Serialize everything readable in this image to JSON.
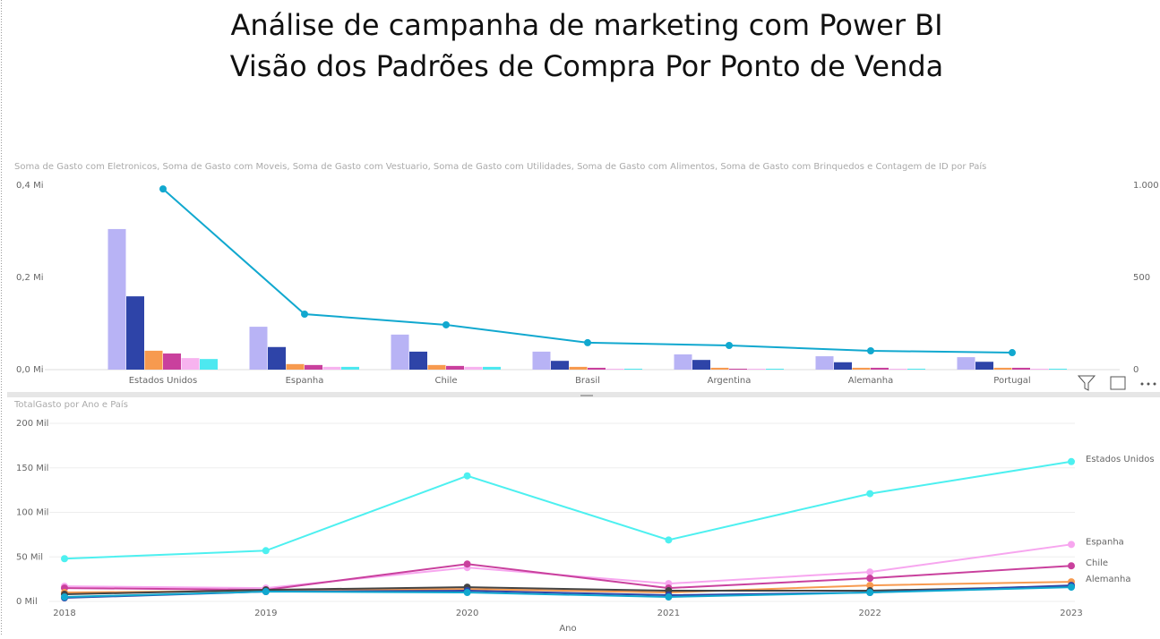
{
  "header": {
    "title_lines": [
      "Análise de campanha de marketing com Power BI",
      "Visão dos Padrões de Compra Por Ponto de Venda"
    ]
  },
  "chart_data": [
    {
      "type": "combo",
      "title": "Soma de Gasto com Eletronicos, Soma de Gasto com Moveis, Soma de Gasto com Vestuario, Soma de Gasto com Utilidades, Soma de Gasto com Alimentos, Soma de Gasto com Brinquedos e Contagem de ID por País",
      "categories": [
        "Estados Unidos",
        "Espanha",
        "Chile",
        "Brasil",
        "Argentina",
        "Alemanha",
        "Portugal"
      ],
      "series": [
        {
          "color": "#b8b3f5",
          "values": [
            0.305,
            0.093,
            0.076,
            0.039,
            0.033,
            0.029,
            0.027
          ]
        },
        {
          "color": "#2e44a8",
          "values": [
            0.159,
            0.049,
            0.039,
            0.019,
            0.021,
            0.016,
            0.017
          ]
        },
        {
          "color": "#f79a4f",
          "values": [
            0.041,
            0.012,
            0.01,
            0.006,
            0.004,
            0.004,
            0.004
          ]
        },
        {
          "color": "#c9409d",
          "values": [
            0.035,
            0.01,
            0.008,
            0.004,
            0.002,
            0.004,
            0.004
          ]
        },
        {
          "color": "#f7b3ef",
          "values": [
            0.025,
            0.006,
            0.006,
            0.002,
            0.002,
            0.002,
            0.002
          ]
        },
        {
          "color": "#4de8f0",
          "values": [
            0.023,
            0.006,
            0.006,
            0.002,
            0.002,
            0.002,
            0.002
          ]
        },
        {
          "color": "#11a8cf",
          "axis": "y2",
          "values": [
            980,
            301,
            243,
            146,
            131,
            102,
            92
          ]
        }
      ],
      "ylim": [
        0,
        0.4
      ],
      "yticks": [
        {
          "value": 0,
          "label": "0,0 Mi"
        },
        {
          "value": 0.2,
          "label": "0,2 Mi"
        },
        {
          "value": 0.4,
          "label": "0,4 Mi"
        }
      ],
      "y2lim": [
        0,
        1000
      ],
      "y2ticks": [
        0,
        500,
        {
          "value": 1000,
          "label": "1.000"
        }
      ],
      "grid": false
    },
    {
      "type": "line",
      "title": "TotalGasto por Ano e País",
      "x": [
        2018,
        2019,
        2020,
        2021,
        2022,
        2023
      ],
      "xlabel": "Ano",
      "series": [
        {
          "name": "Estados Unidos",
          "color": "#4df0f0",
          "values": [
            48,
            57,
            141,
            69,
            121,
            157
          ]
        },
        {
          "name": "Espanha",
          "color": "#f7a6ef",
          "values": [
            17,
            15,
            38,
            20,
            33,
            64
          ]
        },
        {
          "name": "Chile",
          "color": "#c9409d",
          "values": [
            15,
            13,
            42,
            15,
            26,
            40
          ]
        },
        {
          "name": "Alemanha",
          "color": "#f79a4f",
          "values": [
            10,
            12,
            14,
            10,
            18,
            22
          ]
        },
        {
          "color": "#444444",
          "values": [
            8,
            13,
            16,
            12,
            12,
            17
          ]
        },
        {
          "color": "#2e44a8",
          "values": [
            4,
            11,
            12,
            7,
            10,
            18
          ]
        },
        {
          "color": "#11a8cf",
          "values": [
            5,
            11,
            10,
            5,
            10,
            16
          ]
        }
      ],
      "xlim": [
        2018,
        2023
      ],
      "xticks": [
        2018,
        2019,
        2020,
        2021,
        2022,
        2023
      ],
      "ylim": [
        0,
        200
      ],
      "yticks": [
        {
          "value": 0,
          "label": "0 Mil"
        },
        {
          "value": 50,
          "label": "50 Mil"
        },
        {
          "value": 100,
          "label": "100 Mil"
        },
        {
          "value": 150,
          "label": "150 Mil"
        },
        {
          "value": 200,
          "label": "200 Mil"
        }
      ],
      "grid": true
    }
  ]
}
